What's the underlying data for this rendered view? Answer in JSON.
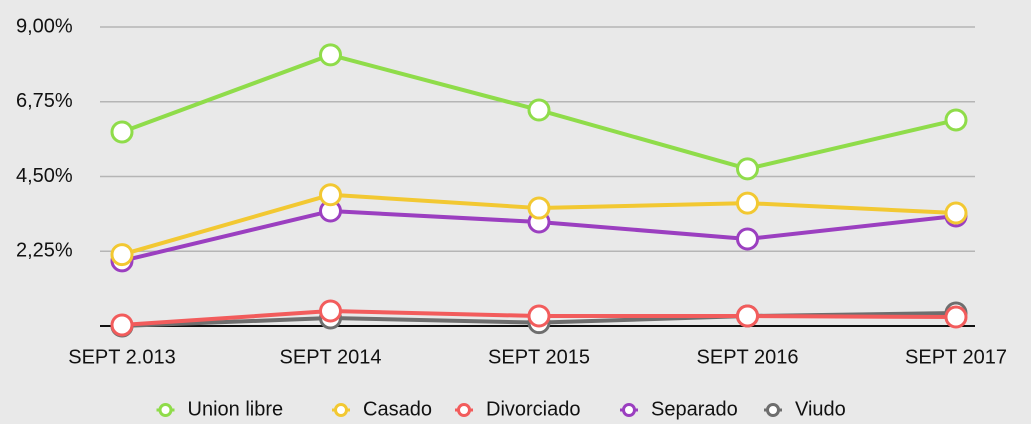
{
  "chart_data": {
    "type": "line",
    "categories": [
      "SEPT 2.013",
      "SEPT 2014",
      "SEPT 2015",
      "SEPT 2016",
      "SEPT 2017"
    ],
    "series": [
      {
        "name": "Union libre",
        "color": "#8fdc4a",
        "values": [
          5.84,
          8.16,
          6.5,
          4.73,
          6.2
        ]
      },
      {
        "name": "Casado",
        "color": "#f2c832",
        "values": [
          2.15,
          3.95,
          3.55,
          3.7,
          3.4
        ]
      },
      {
        "name": "Divorciado",
        "color": "#f25c5c",
        "values": [
          0.03,
          0.45,
          0.3,
          0.3,
          0.27
        ]
      },
      {
        "name": "Separado",
        "color": "#9b3fc0",
        "values": [
          1.96,
          3.46,
          3.13,
          2.62,
          3.31
        ]
      },
      {
        "name": "Viudo",
        "color": "#6e6e6e",
        "values": [
          0.0,
          0.24,
          0.1,
          0.3,
          0.39
        ]
      }
    ],
    "ylim": [
      0,
      9
    ],
    "yticks": [
      {
        "value": 2.25,
        "label": "2,25%"
      },
      {
        "value": 4.5,
        "label": "4,50%"
      },
      {
        "value": 6.75,
        "label": "6,75%"
      },
      {
        "value": 9,
        "label": "9,00%"
      }
    ],
    "grid": true
  }
}
